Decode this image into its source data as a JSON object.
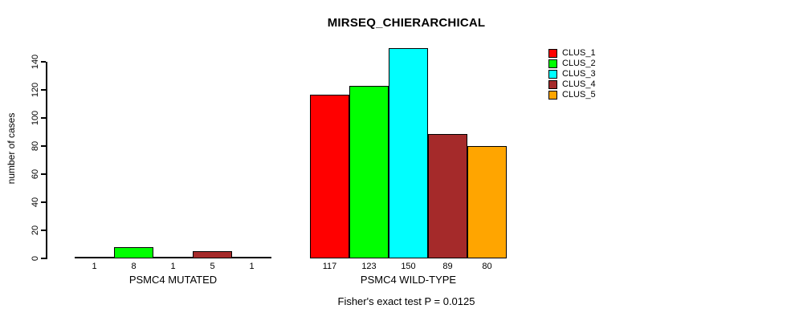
{
  "chart_data": {
    "type": "bar",
    "title": "MIRSEQ_CHIERARCHICAL",
    "ylabel": "number of cases",
    "ylim": [
      0,
      150
    ],
    "yticks": [
      0,
      20,
      40,
      60,
      80,
      100,
      120,
      140
    ],
    "grid": false,
    "legend_position": "top-right",
    "annotation": "Fisher's exact test P = 0.0125",
    "categories": [
      "PSMC4 MUTATED",
      "PSMC4 WILD-TYPE"
    ],
    "bar_value_labels": true,
    "series": [
      {
        "name": "CLUS_1",
        "color": "#ff0000",
        "values": [
          1,
          117
        ]
      },
      {
        "name": "CLUS_2",
        "color": "#00ff00",
        "values": [
          8,
          123
        ]
      },
      {
        "name": "CLUS_3",
        "color": "#00ffff",
        "values": [
          1,
          150
        ]
      },
      {
        "name": "CLUS_4",
        "color": "#a52a2a",
        "values": [
          5,
          89
        ]
      },
      {
        "name": "CLUS_5",
        "color": "#ffa500",
        "values": [
          1,
          80
        ]
      }
    ]
  }
}
